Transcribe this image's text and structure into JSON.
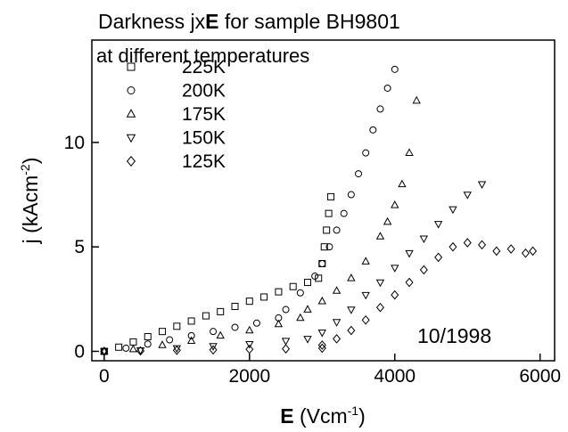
{
  "chart_data": {
    "type": "scatter",
    "title_parts": [
      "Darkness jx",
      "E",
      " for sample BH9801"
    ],
    "subtitle": "at different temperatures",
    "xlabel_parts": [
      "E",
      " (Vcm",
      "-1",
      ")"
    ],
    "ylabel_parts": [
      "j (kAcm",
      "-2",
      ")"
    ],
    "annotation": "10/1998",
    "xlim": [
      -170,
      6200
    ],
    "ylim": [
      -0.45,
      14.9
    ],
    "xticks": [
      0,
      2000,
      4000,
      6000
    ],
    "yticks": [
      0,
      5,
      10
    ],
    "legend": "upper-left",
    "series": [
      {
        "name": "225K",
        "marker": "square",
        "color": "#000000",
        "x": [
          0,
          200,
          400,
          600,
          800,
          1000,
          1200,
          1400,
          1600,
          1800,
          2000,
          2200,
          2400,
          2600,
          2800,
          2950,
          3000,
          3030,
          3060,
          3090,
          3120
        ],
        "values": [
          0,
          0.2,
          0.45,
          0.7,
          0.95,
          1.2,
          1.45,
          1.7,
          1.9,
          2.15,
          2.4,
          2.6,
          2.85,
          3.1,
          3.3,
          3.5,
          4.2,
          5,
          5.8,
          6.6,
          7.4
        ]
      },
      {
        "name": "200K",
        "marker": "circle",
        "color": "#000000",
        "x": [
          0,
          300,
          600,
          900,
          1200,
          1500,
          1800,
          2100,
          2400,
          2500,
          2700,
          2900,
          3000,
          3100,
          3200,
          3300,
          3400,
          3500,
          3600,
          3700,
          3800,
          3900,
          4000
        ],
        "values": [
          0,
          0.15,
          0.35,
          0.55,
          0.75,
          0.95,
          1.15,
          1.35,
          1.6,
          2.0,
          2.8,
          3.6,
          4.2,
          5,
          5.8,
          6.6,
          7.5,
          8.5,
          9.5,
          10.6,
          11.6,
          12.6,
          13.5
        ]
      },
      {
        "name": "175K",
        "marker": "triangle",
        "color": "#000000",
        "x": [
          0,
          400,
          800,
          1200,
          1600,
          2000,
          2400,
          2700,
          2800,
          3000,
          3200,
          3400,
          3600,
          3800,
          3900,
          4000,
          4100,
          4200,
          4300
        ],
        "values": [
          0,
          0.1,
          0.3,
          0.5,
          0.75,
          1.0,
          1.3,
          1.6,
          2.0,
          2.4,
          2.9,
          3.5,
          4.3,
          5.5,
          6.2,
          7,
          8,
          9.5,
          12
        ]
      },
      {
        "name": "150K",
        "marker": "triangle-down",
        "color": "#000000",
        "x": [
          0,
          500,
          1000,
          1500,
          2000,
          2500,
          2800,
          3000,
          3200,
          3400,
          3600,
          3800,
          4000,
          4200,
          4400,
          4600,
          4800,
          5000,
          5200
        ],
        "values": [
          0,
          0.05,
          0.15,
          0.25,
          0.35,
          0.5,
          0.6,
          0.9,
          1.4,
          2,
          2.7,
          3.3,
          4,
          4.7,
          5.4,
          6.1,
          6.8,
          7.5,
          8
        ]
      },
      {
        "name": "125K",
        "marker": "diamond",
        "color": "#000000",
        "x": [
          0,
          500,
          1000,
          1500,
          2000,
          2500,
          3000,
          3000,
          3200,
          3400,
          3600,
          3800,
          4000,
          4200,
          4400,
          4600,
          4800,
          5000,
          5200,
          5400,
          5600,
          5800,
          5900
        ],
        "values": [
          0,
          0.02,
          0.05,
          0.07,
          0.1,
          0.12,
          0.15,
          0.3,
          0.6,
          1,
          1.5,
          2.1,
          2.7,
          3.3,
          3.9,
          4.5,
          5.0,
          5.2,
          5.1,
          4.8,
          4.9,
          4.7,
          4.8
        ]
      }
    ]
  }
}
